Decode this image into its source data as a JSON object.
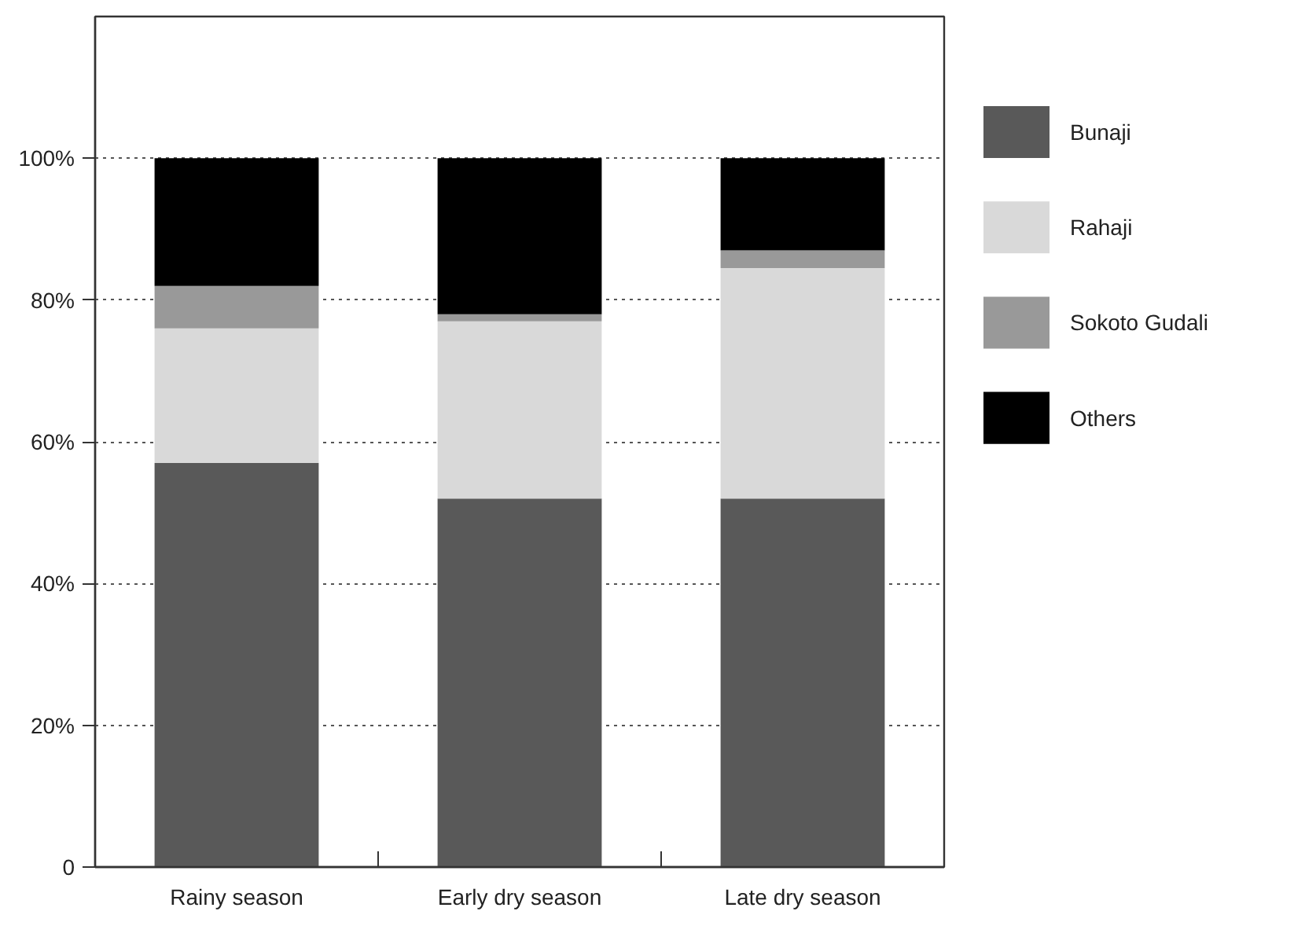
{
  "chart_data": {
    "type": "bar",
    "stacked": true,
    "categories": [
      "Rainy season",
      "Early dry season",
      "Late dry season"
    ],
    "series": [
      {
        "name": "Bunaji",
        "color": "#595959",
        "values": [
          57,
          52,
          52
        ]
      },
      {
        "name": "Rahaji",
        "color": "#d9d9d9",
        "values": [
          19,
          25,
          32.5
        ]
      },
      {
        "name": "Sokoto Gudali",
        "color": "#999999",
        "values": [
          6,
          1,
          2.5
        ]
      },
      {
        "name": "Others",
        "color": "#000000",
        "values": [
          18,
          22,
          13
        ]
      }
    ],
    "ylim": [
      0,
      120
    ],
    "yticks": [
      {
        "value": 0,
        "label": "0"
      },
      {
        "value": 20,
        "label": "20%"
      },
      {
        "value": 40,
        "label": "40%"
      },
      {
        "value": 60,
        "label": "60%"
      },
      {
        "value": 80,
        "label": "80%"
      },
      {
        "value": 100,
        "label": "100%"
      }
    ],
    "grid": "y",
    "legend": "right"
  }
}
